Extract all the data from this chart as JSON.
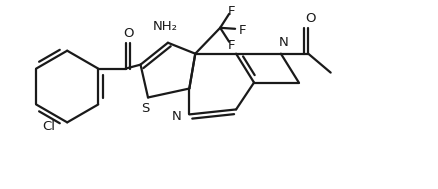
{
  "bg_color": "#ffffff",
  "line_color": "#1a1a1a",
  "line_width": 1.6,
  "figsize": [
    4.38,
    1.89
  ],
  "dpi": 100,
  "xlim": [
    0.0,
    8.8
  ],
  "ylim": [
    0.0,
    3.78
  ]
}
